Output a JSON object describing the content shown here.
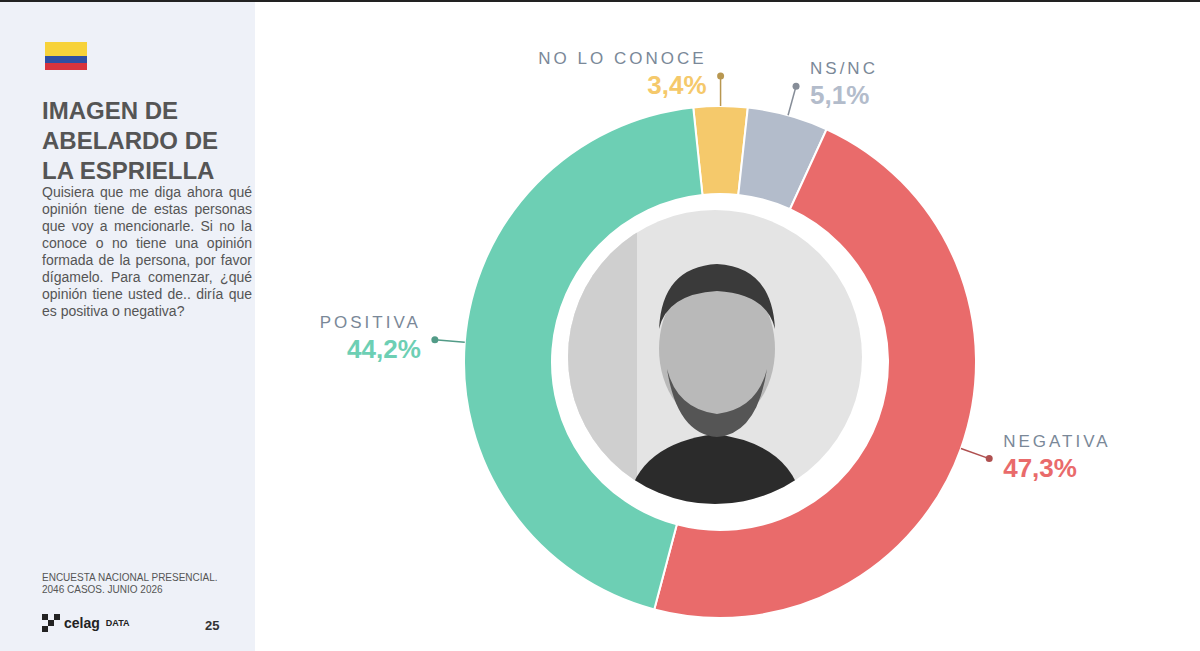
{
  "chart_data": {
    "type": "pie",
    "title": "IMAGEN DE ABELARDO DE LA ESPRIELLA",
    "subtitle": "Quisiera que me diga ahora qué opinión tiene de estas personas que voy a mencionarle. Si no la conoce o no tiene una opinión formada de la persona, por favor dígamelo. Para comenzar, ¿qué opinión tiene usted de.. diría que es positiva o negativa?",
    "categories": [
      "NO LO CONOCE",
      "NS/NC",
      "NEGATIVA",
      "POSITIVA"
    ],
    "values": [
      3.4,
      5.1,
      47.3,
      44.2
    ],
    "value_labels": [
      "3,4%",
      "5,1%",
      "47,3%",
      "44,2%"
    ],
    "colors": [
      "#f5c96b",
      "#b3bccb",
      "#e96b6b",
      "#6dcfb4"
    ],
    "data_labels": true,
    "source": [
      "ENCUESTA NACIONAL PRESENCIAL.",
      "2046 CASOS. JUNIO 2026"
    ],
    "logo": [
      "celag",
      "DATA"
    ],
    "page": "25"
  }
}
